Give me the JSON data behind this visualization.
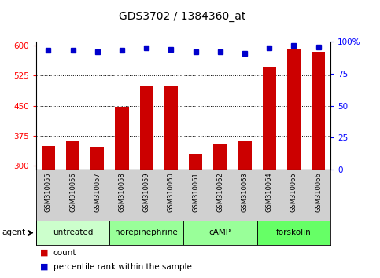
{
  "title": "GDS3702 / 1384360_at",
  "samples": [
    "GSM310055",
    "GSM310056",
    "GSM310057",
    "GSM310058",
    "GSM310059",
    "GSM310060",
    "GSM310061",
    "GSM310062",
    "GSM310063",
    "GSM310064",
    "GSM310065",
    "GSM310066"
  ],
  "counts": [
    348,
    362,
    347,
    447,
    500,
    498,
    330,
    355,
    362,
    548,
    590,
    585
  ],
  "percentile_ranks": [
    93,
    93,
    92,
    93,
    95,
    94,
    92,
    92,
    91,
    95,
    97,
    96
  ],
  "groups": [
    {
      "label": "untreated",
      "start": 0,
      "end": 3,
      "color": "#ccffcc"
    },
    {
      "label": "norepinephrine",
      "start": 3,
      "end": 6,
      "color": "#99ff99"
    },
    {
      "label": "cAMP",
      "start": 6,
      "end": 9,
      "color": "#99ff99"
    },
    {
      "label": "forskolin",
      "start": 9,
      "end": 12,
      "color": "#66ff66"
    }
  ],
  "ylim_left": [
    290,
    610
  ],
  "ylim_right": [
    0,
    100
  ],
  "yticks_left": [
    300,
    375,
    450,
    525,
    600
  ],
  "yticks_right": [
    0,
    25,
    50,
    75,
    100
  ],
  "right_tick_labels": [
    "0",
    "25",
    "50",
    "75",
    "100%"
  ],
  "bar_color": "#cc0000",
  "dot_color": "#0000cc",
  "bar_width": 0.55,
  "background_color": "#ffffff",
  "legend_count_label": "count",
  "legend_percentile_label": "percentile rank within the sample",
  "agent_label": "agent"
}
